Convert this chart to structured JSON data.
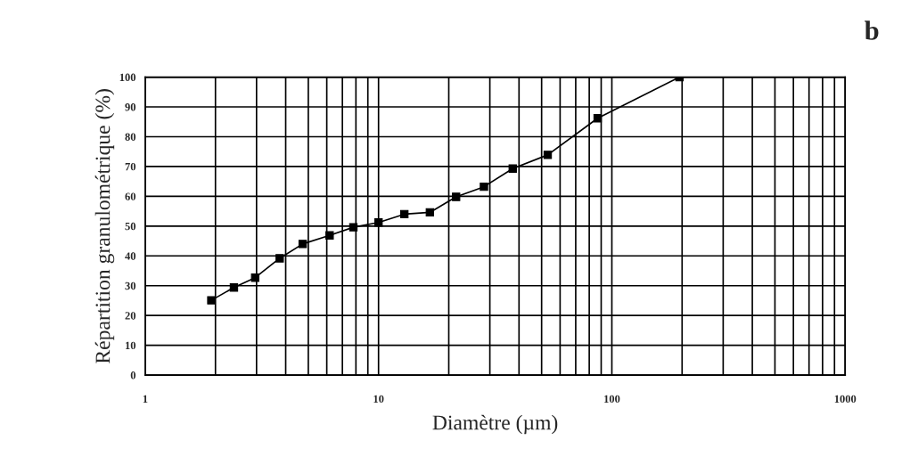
{
  "chart_data": {
    "type": "line",
    "title": "b",
    "xlabel": "Diamètre (µm)",
    "ylabel": "Répartition granulométrique (%)",
    "x": [
      1.92,
      2.4,
      2.96,
      3.77,
      4.73,
      6.17,
      7.8,
      10,
      12.9,
      16.6,
      21.5,
      28.3,
      37.6,
      53.1,
      86.9,
      195
    ],
    "series": [
      {
        "color": "#000000",
        "values": [
          25.1,
          29.4,
          32.7,
          39.2,
          44.0,
          46.9,
          49.6,
          51.2,
          54.0,
          54.6,
          59.8,
          63.2,
          69.3,
          73.9,
          86.2,
          100
        ]
      }
    ],
    "log": "x",
    "xlim": [
      1,
      1000
    ],
    "xticks": [
      1,
      10,
      100,
      1000
    ],
    "ylim": [
      0,
      100
    ],
    "yticks": [
      0,
      10,
      20,
      30,
      40,
      50,
      60,
      70,
      80,
      90,
      100
    ],
    "grid": true,
    "marker": "square",
    "line_style": "solid",
    "legend": false
  }
}
